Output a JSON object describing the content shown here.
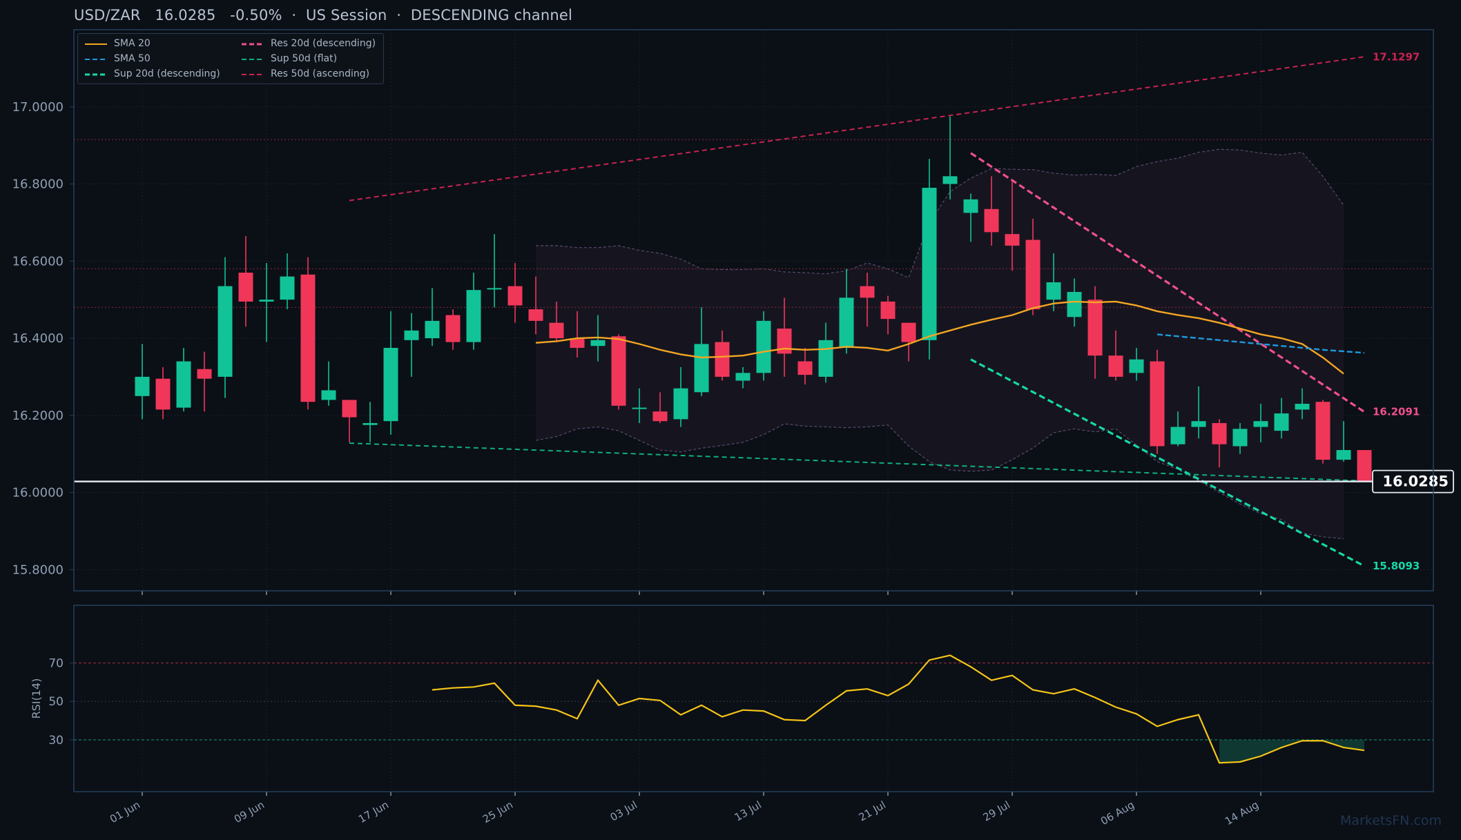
{
  "header": {
    "title": "USD/ZAR   16.0285   -0.50%  ·  US Session  ·  DESCENDING channel"
  },
  "watermark": "MarketsFN.com",
  "legend": [
    {
      "label": "SMA 20",
      "color": "#f5a623",
      "style": "solid"
    },
    {
      "label": "SMA 50",
      "color": "#1e9be0",
      "style": "dashed"
    },
    {
      "label": "Sup 20d (descending)",
      "color": "#16d9a6",
      "style": "dashed"
    },
    {
      "label": "Res 20d (descending)",
      "color": "#f0508c",
      "style": "dashed"
    },
    {
      "label": "Sup 50d (flat)",
      "color": "#0fb07f",
      "style": "dashed"
    },
    {
      "label": "Res 50d (ascending)",
      "color": "#c8244f",
      "style": "dashed"
    }
  ],
  "colors": {
    "up": "#12c398",
    "down": "#f0375a",
    "sma20": "#f5a623",
    "sma50": "#1e9be0",
    "sup20": "#16d9a6",
    "res20": "#f0508c",
    "sup50": "#0fb07f",
    "res50": "#c8244f",
    "rsi": "#f5c518",
    "grid": "#1a2230",
    "frame": "#24415e",
    "text": "#8fa0b4"
  },
  "chart_data": [
    {
      "type": "candlestick",
      "title": "USD/ZAR",
      "last_price": "16.0285",
      "change": "-0.50%",
      "ylim": [
        15.745,
        17.2
      ],
      "yticks": [
        "15.8000",
        "16.0000",
        "16.2000",
        "16.4000",
        "16.6000",
        "16.8000",
        "17.0000"
      ],
      "xticks": [
        "01 Jun",
        "09 Jun",
        "17 Jun",
        "25 Jun",
        "03 Jul",
        "13 Jul",
        "21 Jul",
        "29 Jul",
        "06 Aug",
        "14 Aug"
      ],
      "candles": [
        {
          "o": 16.25,
          "h": 16.385,
          "l": 16.19,
          "c": 16.3
        },
        {
          "o": 16.295,
          "h": 16.325,
          "l": 16.19,
          "c": 16.215
        },
        {
          "o": 16.22,
          "h": 16.375,
          "l": 16.21,
          "c": 16.34
        },
        {
          "o": 16.32,
          "h": 16.365,
          "l": 16.21,
          "c": 16.295
        },
        {
          "o": 16.3,
          "h": 16.61,
          "l": 16.245,
          "c": 16.535
        },
        {
          "o": 16.57,
          "h": 16.665,
          "l": 16.43,
          "c": 16.495
        },
        {
          "o": 16.495,
          "h": 16.595,
          "l": 16.39,
          "c": 16.5
        },
        {
          "o": 16.5,
          "h": 16.62,
          "l": 16.475,
          "c": 16.56
        },
        {
          "o": 16.565,
          "h": 16.61,
          "l": 16.215,
          "c": 16.235
        },
        {
          "o": 16.24,
          "h": 16.34,
          "l": 16.225,
          "c": 16.265
        },
        {
          "o": 16.24,
          "h": 16.24,
          "l": 16.13,
          "c": 16.195
        },
        {
          "o": 16.175,
          "h": 16.235,
          "l": 16.13,
          "c": 16.18
        },
        {
          "o": 16.185,
          "h": 16.47,
          "l": 16.15,
          "c": 16.375
        },
        {
          "o": 16.395,
          "h": 16.465,
          "l": 16.3,
          "c": 16.42
        },
        {
          "o": 16.4,
          "h": 16.53,
          "l": 16.38,
          "c": 16.445
        },
        {
          "o": 16.46,
          "h": 16.475,
          "l": 16.37,
          "c": 16.39
        },
        {
          "o": 16.39,
          "h": 16.57,
          "l": 16.37,
          "c": 16.525
        },
        {
          "o": 16.53,
          "h": 16.67,
          "l": 16.48,
          "c": 16.53
        },
        {
          "o": 16.535,
          "h": 16.595,
          "l": 16.44,
          "c": 16.485
        },
        {
          "o": 16.475,
          "h": 16.56,
          "l": 16.41,
          "c": 16.445
        },
        {
          "o": 16.44,
          "h": 16.495,
          "l": 16.39,
          "c": 16.4
        },
        {
          "o": 16.4,
          "h": 16.47,
          "l": 16.35,
          "c": 16.375
        },
        {
          "o": 16.38,
          "h": 16.46,
          "l": 16.34,
          "c": 16.395
        },
        {
          "o": 16.405,
          "h": 16.41,
          "l": 16.215,
          "c": 16.225
        },
        {
          "o": 16.22,
          "h": 16.27,
          "l": 16.18,
          "c": 16.22
        },
        {
          "o": 16.21,
          "h": 16.26,
          "l": 16.18,
          "c": 16.185
        },
        {
          "o": 16.19,
          "h": 16.325,
          "l": 16.17,
          "c": 16.27
        },
        {
          "o": 16.26,
          "h": 16.48,
          "l": 16.25,
          "c": 16.385
        },
        {
          "o": 16.39,
          "h": 16.42,
          "l": 16.29,
          "c": 16.3
        },
        {
          "o": 16.29,
          "h": 16.325,
          "l": 16.27,
          "c": 16.31
        },
        {
          "o": 16.31,
          "h": 16.47,
          "l": 16.29,
          "c": 16.445
        },
        {
          "o": 16.425,
          "h": 16.505,
          "l": 16.3,
          "c": 16.36
        },
        {
          "o": 16.34,
          "h": 16.375,
          "l": 16.28,
          "c": 16.305
        },
        {
          "o": 16.3,
          "h": 16.44,
          "l": 16.285,
          "c": 16.395
        },
        {
          "o": 16.375,
          "h": 16.58,
          "l": 16.36,
          "c": 16.505
        },
        {
          "o": 16.535,
          "h": 16.57,
          "l": 16.43,
          "c": 16.505
        },
        {
          "o": 16.495,
          "h": 16.51,
          "l": 16.41,
          "c": 16.45
        },
        {
          "o": 16.44,
          "h": 16.44,
          "l": 16.34,
          "c": 16.39
        },
        {
          "o": 16.395,
          "h": 16.865,
          "l": 16.345,
          "c": 16.79
        },
        {
          "o": 16.8,
          "h": 16.975,
          "l": 16.76,
          "c": 16.82
        },
        {
          "o": 16.725,
          "h": 16.775,
          "l": 16.65,
          "c": 16.76
        },
        {
          "o": 16.735,
          "h": 16.82,
          "l": 16.64,
          "c": 16.675
        },
        {
          "o": 16.67,
          "h": 16.805,
          "l": 16.575,
          "c": 16.64
        },
        {
          "o": 16.655,
          "h": 16.71,
          "l": 16.46,
          "c": 16.475
        },
        {
          "o": 16.5,
          "h": 16.62,
          "l": 16.47,
          "c": 16.545
        },
        {
          "o": 16.455,
          "h": 16.555,
          "l": 16.43,
          "c": 16.52
        },
        {
          "o": 16.5,
          "h": 16.535,
          "l": 16.295,
          "c": 16.355
        },
        {
          "o": 16.355,
          "h": 16.42,
          "l": 16.29,
          "c": 16.3
        },
        {
          "o": 16.31,
          "h": 16.375,
          "l": 16.29,
          "c": 16.345
        },
        {
          "o": 16.34,
          "h": 16.37,
          "l": 16.1,
          "c": 16.12
        },
        {
          "o": 16.125,
          "h": 16.21,
          "l": 16.12,
          "c": 16.17
        },
        {
          "o": 16.17,
          "h": 16.275,
          "l": 16.14,
          "c": 16.185
        },
        {
          "o": 16.18,
          "h": 16.19,
          "l": 16.065,
          "c": 16.125
        },
        {
          "o": 16.12,
          "h": 16.18,
          "l": 16.1,
          "c": 16.165
        },
        {
          "o": 16.17,
          "h": 16.23,
          "l": 16.13,
          "c": 16.185
        },
        {
          "o": 16.16,
          "h": 16.245,
          "l": 16.14,
          "c": 16.205
        },
        {
          "o": 16.215,
          "h": 16.27,
          "l": 16.19,
          "c": 16.23
        },
        {
          "o": 16.235,
          "h": 16.24,
          "l": 16.075,
          "c": 16.085
        },
        {
          "o": 16.085,
          "h": 16.185,
          "l": 16.08,
          "c": 16.11
        },
        {
          "o": 16.11,
          "h": 16.11,
          "l": 16.03,
          "c": 16.029
        }
      ],
      "sma20": {
        "start": 19,
        "values": [
          16.388,
          16.392,
          16.4,
          16.402,
          16.398,
          16.385,
          16.37,
          16.358,
          16.35,
          16.352,
          16.355,
          16.365,
          16.373,
          16.37,
          16.372,
          16.378,
          16.375,
          16.368,
          16.385,
          16.405,
          16.42,
          16.435,
          16.448,
          16.46,
          16.478,
          16.49,
          16.495,
          16.493,
          16.495,
          16.485,
          16.47,
          16.46,
          16.452,
          16.44,
          16.425,
          16.41,
          16.4,
          16.385,
          16.35,
          16.308
        ]
      },
      "sma50": {
        "start": 49,
        "values": [
          16.41,
          16.405,
          16.4,
          16.395,
          16.39,
          16.385,
          16.38,
          16.375,
          16.37,
          16.366,
          16.362
        ]
      },
      "bollinger": {
        "start": 19,
        "upper": [
          16.64,
          16.64,
          16.635,
          16.635,
          16.64,
          16.628,
          16.62,
          16.605,
          16.58,
          16.578,
          16.578,
          16.58,
          16.572,
          16.57,
          16.567,
          16.575,
          16.595,
          16.58,
          16.557,
          16.7,
          16.78,
          16.815,
          16.84,
          16.838,
          16.837,
          16.828,
          16.823,
          16.825,
          16.822,
          16.845,
          16.858,
          16.867,
          16.882,
          16.89,
          16.888,
          16.88,
          16.875,
          16.882,
          16.82,
          16.745
        ],
        "lower": [
          16.135,
          16.145,
          16.165,
          16.17,
          16.16,
          16.135,
          16.11,
          16.105,
          16.115,
          16.122,
          16.13,
          16.15,
          16.178,
          16.172,
          16.17,
          16.168,
          16.17,
          16.175,
          16.12,
          16.08,
          16.058,
          16.055,
          16.058,
          16.085,
          16.115,
          16.155,
          16.165,
          16.157,
          16.165,
          16.123,
          16.08,
          16.06,
          16.03,
          16.0,
          15.97,
          15.945,
          15.93,
          15.895,
          15.885,
          15.88
        ]
      },
      "horizontal_levels": [
        16.915,
        16.58,
        16.48
      ],
      "trendlines": [
        {
          "name": "Res 20d (descending)",
          "x1": 40,
          "y1": 16.88,
          "x2": 59,
          "y2": 16.2091,
          "label": "16.2091"
        },
        {
          "name": "Sup 20d (descending)",
          "x1": 40,
          "y1": 16.345,
          "x2": 59,
          "y2": 15.8093,
          "label": "15.8093"
        },
        {
          "name": "Sup 50d (flat)",
          "x1": 10,
          "y1": 16.128,
          "x2": 59,
          "y2": 16.03,
          "label": ""
        },
        {
          "name": "Res 50d (ascending)",
          "x1": 10,
          "y1": 16.757,
          "x2": 59,
          "y2": 17.1297,
          "label": "17.1297"
        }
      ]
    },
    {
      "type": "line",
      "ylabel": "RSI(14)",
      "ylim": [
        3,
        100
      ],
      "yticks": [
        "30",
        "50",
        "70"
      ],
      "levels": [
        70,
        50,
        30
      ],
      "series": [
        {
          "start": 14,
          "values": [
            56,
            57,
            57.5,
            59.5,
            48,
            47.5,
            45.5,
            41,
            61,
            48,
            51.5,
            50.5,
            43,
            48,
            42,
            45.5,
            45,
            40.5,
            40,
            48,
            55.5,
            56.5,
            53,
            59,
            71.5,
            74,
            68,
            61,
            63.5,
            56,
            54,
            56.5,
            52,
            47,
            43.5,
            37,
            40.5,
            43,
            18,
            18.5,
            21.5,
            26,
            29.5,
            29.5,
            26,
            24.5
          ]
        }
      ]
    }
  ]
}
